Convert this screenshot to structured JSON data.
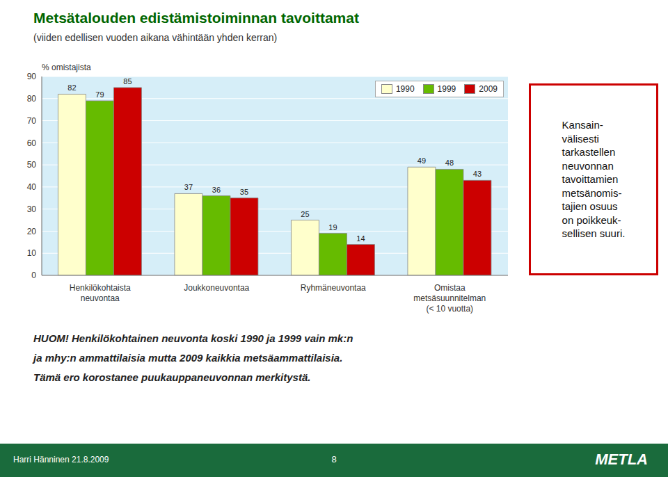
{
  "chart_data": {
    "type": "bar",
    "title": "Metsätalouden edistämistoiminnan tavoittamat",
    "subtitle": "(viiden edellisen vuoden aikana vähintään yhden kerran)",
    "y_label": "% omistajista",
    "categories": [
      "Henkilökohtaista\nneuvontaa",
      "Joukkoneuvontaa",
      "Ryhmäneuvontaa",
      "Omistaa\nmetsäsuunnitelman\n(< 10 vuotta)"
    ],
    "series": [
      {
        "name": "1990",
        "color": "#FFFFCC",
        "values": [
          82,
          37,
          25,
          49
        ]
      },
      {
        "name": "1999",
        "color": "#66BB00",
        "values": [
          79,
          36,
          19,
          48
        ]
      },
      {
        "name": "2009",
        "color": "#CC0000",
        "values": [
          85,
          35,
          14,
          43
        ]
      }
    ],
    "ylim": [
      0,
      90
    ],
    "yticks": [
      0,
      10,
      20,
      30,
      40,
      50,
      60,
      70,
      80,
      90
    ],
    "grid": true,
    "legend": "upper right",
    "data_labels": true,
    "annotations": [
      "Kansain-\nvälisesti\ntarkastellen\nneuvonnan\ntavoittamien\nmetsänomis-\ntajien osuus\non poikkeuk-\nsellisen suuri.",
      "HUOM! Henkilökohtainen neuvonta koski 1990 ja 1999 vain mk:n",
      "ja mhy:n ammattilaisia mutta 2009 kaikkia metsäammattilaisia.",
      "Tämä ero korostanee puukauppaneuvonnan merkitystä.",
      "Harri Hänninen 21.8.2009",
      "8",
      "METLA"
    ]
  }
}
